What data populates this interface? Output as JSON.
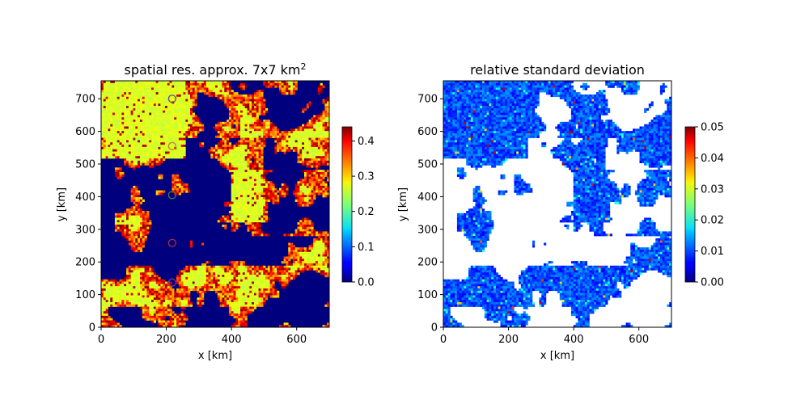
{
  "chart_data": [
    {
      "type": "heatmap",
      "title": "spatial res. approx. 7x7 km",
      "title_superscript": "2",
      "xlabel": "x [km]",
      "ylabel": "y [km]",
      "xlim": [
        0,
        700
      ],
      "ylim": [
        0,
        755
      ],
      "xticks": [
        0,
        200,
        400,
        600
      ],
      "yticks": [
        0,
        100,
        200,
        300,
        400,
        500,
        600,
        700
      ],
      "colormap": "jet",
      "colorbar": {
        "min": 0.0,
        "max": 0.44,
        "ticks": [
          "0.0",
          "0.1",
          "0.2",
          "0.3",
          "0.4"
        ],
        "tick_values": [
          0.0,
          0.1,
          0.2,
          0.3,
          0.4
        ]
      },
      "markers": [
        {
          "x": 218,
          "y": 700,
          "color": "#7a3a8a"
        },
        {
          "x": 218,
          "y": 555,
          "color": "#cc7a3a"
        },
        {
          "x": 218,
          "y": 405,
          "color": "#3a8a3a"
        },
        {
          "x": 218,
          "y": 258,
          "color": "#b03030"
        },
        {
          "x": 218,
          "y": 137,
          "color": "#7a3a8a"
        }
      ],
      "background_color": "#00007f"
    },
    {
      "type": "heatmap",
      "title": "relative standard deviation",
      "xlabel": "x [km]",
      "ylabel": "y [km]",
      "xlim": [
        0,
        700
      ],
      "ylim": [
        0,
        755
      ],
      "xticks": [
        0,
        200,
        400,
        600
      ],
      "yticks": [
        0,
        100,
        200,
        300,
        400,
        500,
        600,
        700
      ],
      "colormap": "jet",
      "colorbar": {
        "min": 0.0,
        "max": 0.05,
        "ticks": [
          "0.00",
          "0.01",
          "0.02",
          "0.03",
          "0.04",
          "0.05"
        ],
        "tick_values": [
          0.0,
          0.01,
          0.02,
          0.03,
          0.04,
          0.05
        ]
      },
      "background_color": "#ffffff"
    }
  ]
}
